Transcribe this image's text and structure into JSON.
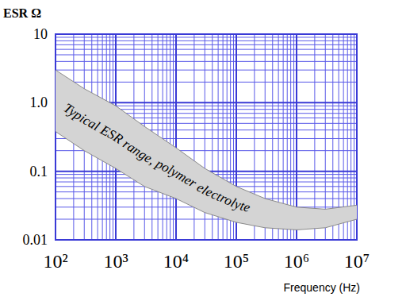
{
  "chart_data": {
    "type": "band",
    "y_label": "ESR Ω",
    "x_label": "Frequency (Hz)",
    "annotation": "Typical ESR range, polymer electrolyte",
    "x": [
      100,
      300,
      1000,
      3000,
      10000,
      30000,
      100000,
      300000,
      1000000,
      3000000,
      10000000
    ],
    "series": [
      {
        "values": [
          3.0,
          1.6,
          0.9,
          0.45,
          0.22,
          0.11,
          0.06,
          0.04,
          0.03,
          0.028,
          0.032
        ]
      },
      {
        "values": [
          0.38,
          0.2,
          0.11,
          0.06,
          0.04,
          0.025,
          0.018,
          0.015,
          0.014,
          0.015,
          0.02
        ]
      }
    ],
    "color": "#d4d4d4",
    "xlim": [
      100,
      10000000
    ],
    "ylim": [
      0.01,
      10
    ],
    "xticks": [
      {
        "value": 100,
        "label": "10²"
      },
      {
        "value": 1000,
        "label": "10³"
      },
      {
        "value": 10000,
        "label": "10⁴"
      },
      {
        "value": 100000,
        "label": "10⁵"
      },
      {
        "value": 1000000,
        "label": "10⁶"
      },
      {
        "value": 10000000,
        "label": "10⁷"
      }
    ],
    "yticks": [
      0.01,
      0.1,
      {
        "value": 1,
        "label": "1.0"
      },
      10
    ],
    "log": true,
    "grid": true
  }
}
